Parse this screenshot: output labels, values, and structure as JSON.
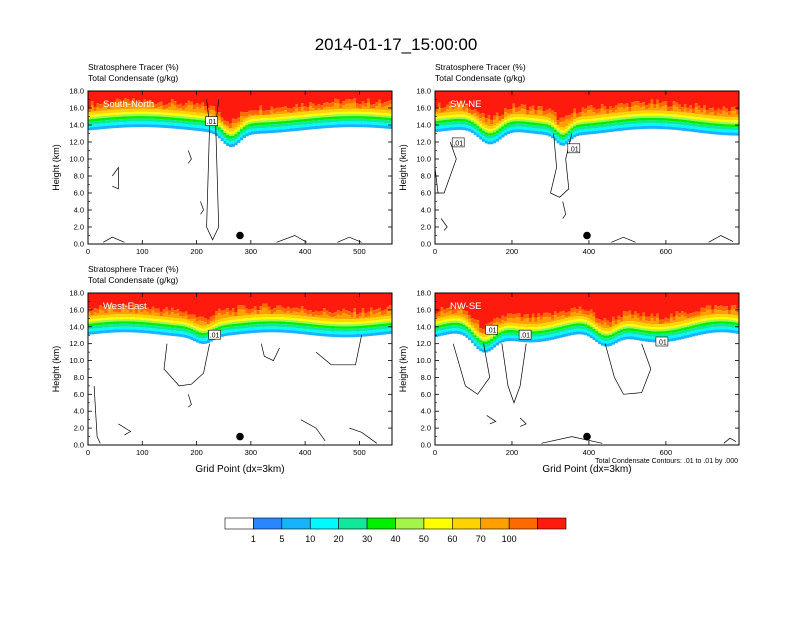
{
  "title": "2014-01-17_15:00:00",
  "colors": {
    "shading": [
      "#ffffff",
      "#2a86ff",
      "#18b3ff",
      "#00fbff",
      "#10e89b",
      "#00f000",
      "#a4f54a",
      "#ffff00",
      "#ffd300",
      "#ffa000",
      "#ff6a00",
      "#ff1a0e"
    ],
    "contour": "#000000"
  },
  "contour_note": "Total Condensate Contours: .01 to .01 by .000",
  "colorbar": {
    "labels": [
      "1",
      "5",
      "10",
      "20",
      "30",
      "40",
      "50",
      "60",
      "70",
      "100"
    ]
  },
  "chart_data": [
    {
      "type": "heatmap",
      "label": "South-North",
      "header_line1": "Stratosphere Tracer   (%)",
      "header_line2": "Total Condensate   (g/kg)",
      "ylabel": "Height (km)",
      "xlabel": "",
      "xlim": [
        0,
        560
      ],
      "ylim": [
        0,
        18
      ],
      "xticks": [
        "0",
        "100",
        "200",
        "300",
        "400",
        "500"
      ],
      "yticks": [
        "0.0",
        "2.0",
        "4.0",
        "6.0",
        "8.0",
        "10.0",
        "12.0",
        "14.0",
        "16.0",
        "18.0"
      ],
      "marker": {
        "x": 280,
        "y": 1.0
      },
      "contour_labels": [
        ".01"
      ]
    },
    {
      "type": "heatmap",
      "label": "SW-NE",
      "header_line1": "Stratosphere Tracer   (%)",
      "header_line2": "Total Condensate   (g/kg)",
      "ylabel": "Height (km)",
      "xlabel": "",
      "xlim": [
        0,
        790
      ],
      "ylim": [
        0,
        18
      ],
      "xticks": [
        "0",
        "200",
        "400",
        "600"
      ],
      "yticks": [
        "0.0",
        "2.0",
        "4.0",
        "6.0",
        "8.0",
        "10.0",
        "12.0",
        "14.0",
        "16.0",
        "18.0"
      ],
      "marker": {
        "x": 395,
        "y": 1.0
      },
      "contour_labels": [
        ".01",
        ".01"
      ]
    },
    {
      "type": "heatmap",
      "label": "West-East",
      "header_line1": "Stratosphere Tracer   (%)",
      "header_line2": "Total Condensate   (g/kg)",
      "ylabel": "Height (km)",
      "xlabel": "Grid Point (dx=3km)",
      "xlim": [
        0,
        560
      ],
      "ylim": [
        0,
        18
      ],
      "xticks": [
        "0",
        "100",
        "200",
        "300",
        "400",
        "500"
      ],
      "yticks": [
        "0.0",
        "2.0",
        "4.0",
        "6.0",
        "8.0",
        "10.0",
        "12.0",
        "14.0",
        "16.0",
        "18.0"
      ],
      "marker": {
        "x": 280,
        "y": 1.0
      },
      "contour_labels": [
        ".01"
      ]
    },
    {
      "type": "heatmap",
      "label": "NW-SE",
      "header_line1": "",
      "header_line2": "",
      "ylabel": "Height (km)",
      "xlabel": "Grid Point (dx=3km)",
      "xlim": [
        0,
        790
      ],
      "ylim": [
        0,
        18
      ],
      "xticks": [
        "0",
        "200",
        "400",
        "600"
      ],
      "yticks": [
        "0.0",
        "2.0",
        "4.0",
        "6.0",
        "8.0",
        "10.0",
        "12.0",
        "14.0",
        "16.0",
        "18.0"
      ],
      "marker": {
        "x": 395,
        "y": 1.0
      },
      "contour_labels": [
        ".01",
        ".01",
        ".01"
      ]
    }
  ]
}
